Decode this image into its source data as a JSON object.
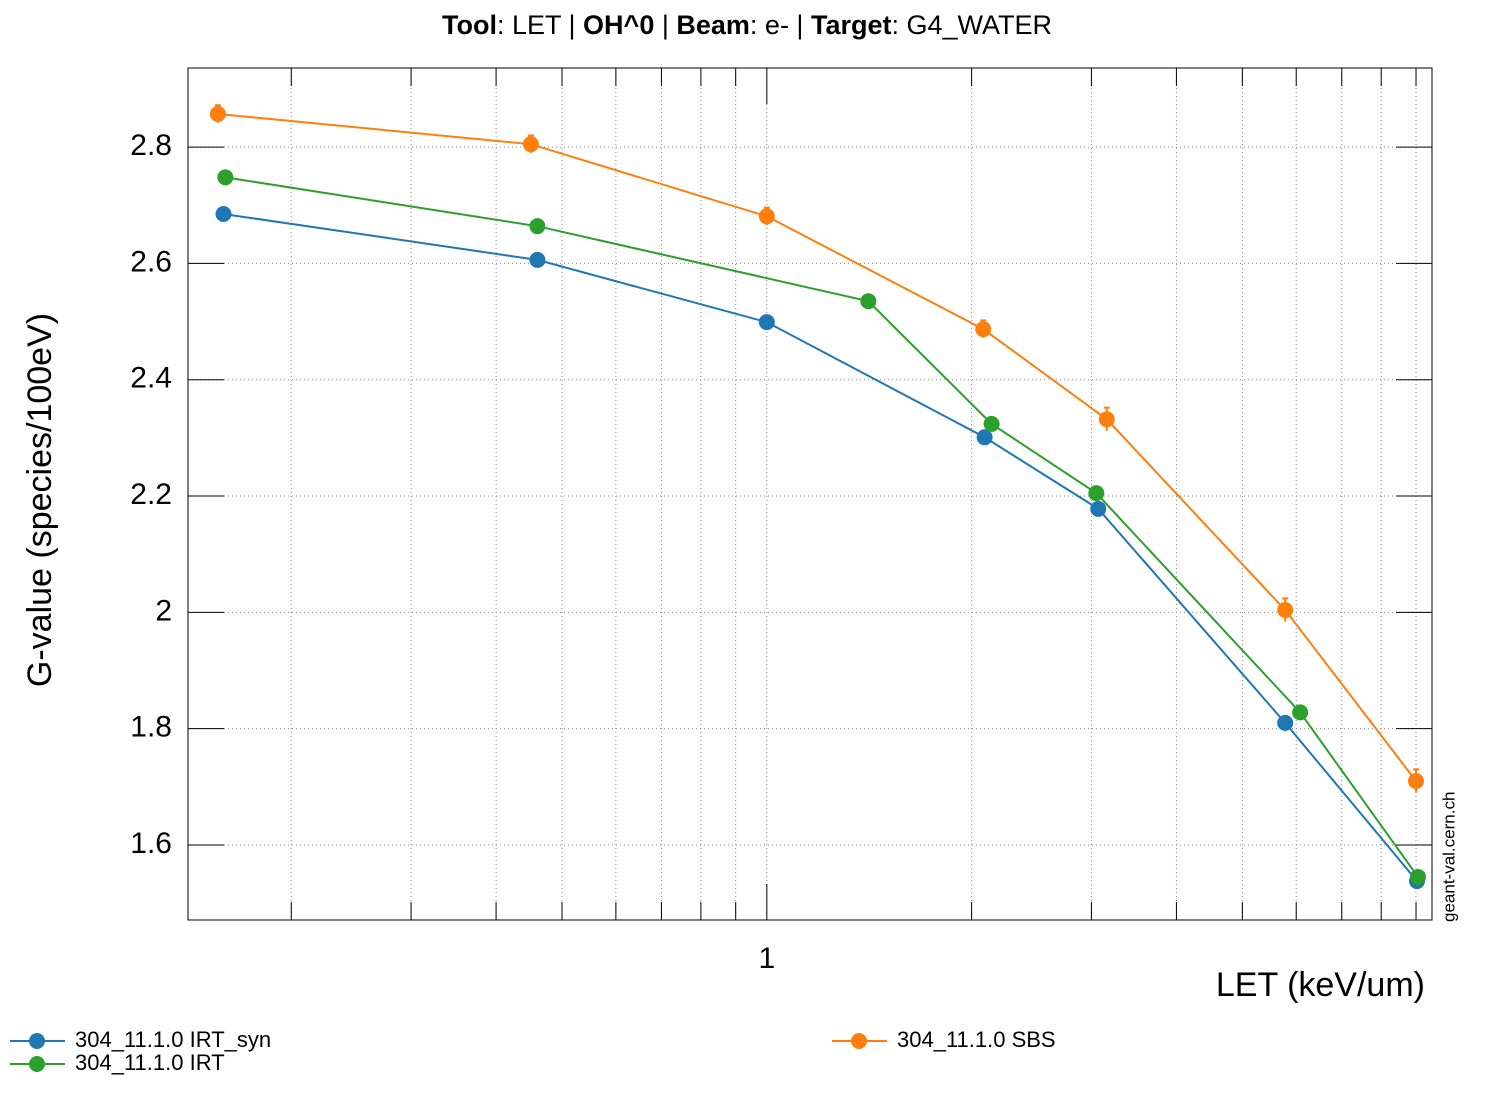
{
  "chart_data": {
    "type": "line",
    "title": [
      {
        "text": "Tool",
        "bold": true
      },
      {
        "text": ": LET | ",
        "bold": false
      },
      {
        "text": "OH^0",
        "bold": true
      },
      {
        "text": " | ",
        "bold": false
      },
      {
        "text": "Beam",
        "bold": true
      },
      {
        "text": ": e- | ",
        "bold": false
      },
      {
        "text": "Target",
        "bold": true
      },
      {
        "text": ": G4_WATER",
        "bold": false
      }
    ],
    "x_label": "LET (keV/um)",
    "y_label": "G-value (species/100eV)",
    "watermark": "geant-val.cern.ch",
    "x_log": true,
    "xlim": [
      0.141,
      9.5
    ],
    "xticks": [
      1
    ],
    "xminorticks": [
      0.2,
      0.3,
      0.4,
      0.5,
      0.6,
      0.7,
      0.8,
      0.9,
      2,
      3,
      4,
      5,
      6,
      7,
      8,
      9
    ],
    "ylim": [
      1.471,
      2.936
    ],
    "yticks": [
      1.6,
      1.8,
      2,
      2.2,
      2.4,
      2.6,
      2.8
    ],
    "grid": true,
    "legend": "bottom",
    "series": [
      {
        "name": "304_11.1.0 IRT_syn",
        "color": "#1f77b4",
        "x": [
          0.159,
          0.46,
          1.0,
          2.09,
          3.07,
          5.78,
          9.03
        ],
        "values": [
          2.685,
          2.606,
          2.499,
          2.301,
          2.178,
          1.81,
          1.538
        ]
      },
      {
        "name": "304_11.1.0 IRT",
        "color": "#2ca02c",
        "x": [
          0.16,
          0.46,
          1.41,
          2.14,
          3.05,
          6.08,
          9.06
        ],
        "values": [
          2.748,
          2.664,
          2.535,
          2.324,
          2.205,
          1.828,
          1.545
        ]
      },
      {
        "name": "304_11.1.0 SBS",
        "color": "#ff7f0e",
        "x": [
          0.156,
          0.45,
          1.0,
          2.08,
          3.16,
          5.78,
          9.0
        ],
        "values": [
          2.857,
          2.805,
          2.681,
          2.487,
          2.332,
          2.004,
          1.71
        ],
        "errors": [
          0.015,
          0.015,
          0.015,
          0.015,
          0.02,
          0.02,
          0.02
        ]
      }
    ]
  }
}
